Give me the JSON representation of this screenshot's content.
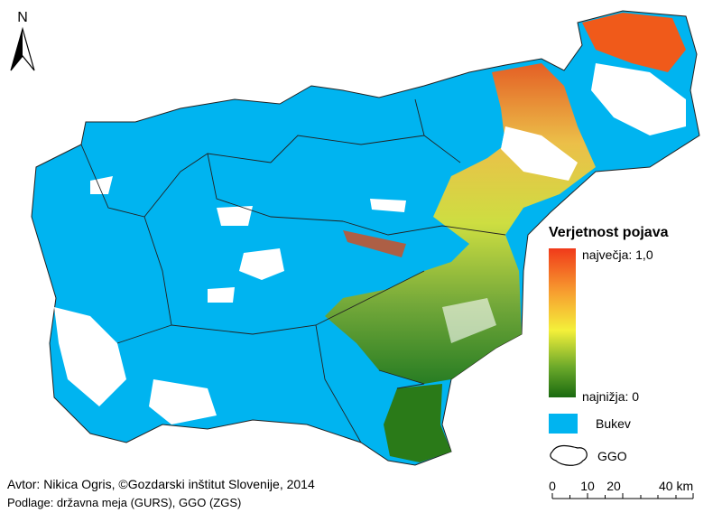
{
  "north_label": "N",
  "legend": {
    "title": "Verjetnost pojava",
    "max_label": "največja: 1,0",
    "min_label": "najnižja: 0",
    "beech_label": "Bukev",
    "region_label": "GGO"
  },
  "scale_bar": {
    "labels": [
      "0",
      "10",
      "20",
      "40 km"
    ]
  },
  "credits": {
    "author": "Avtor: Nikica Ogris, ©Gozdarski inštitut Slovenije, 2014",
    "sources": "Podlage: državna meja (GURS), GGO (ZGS)"
  }
}
